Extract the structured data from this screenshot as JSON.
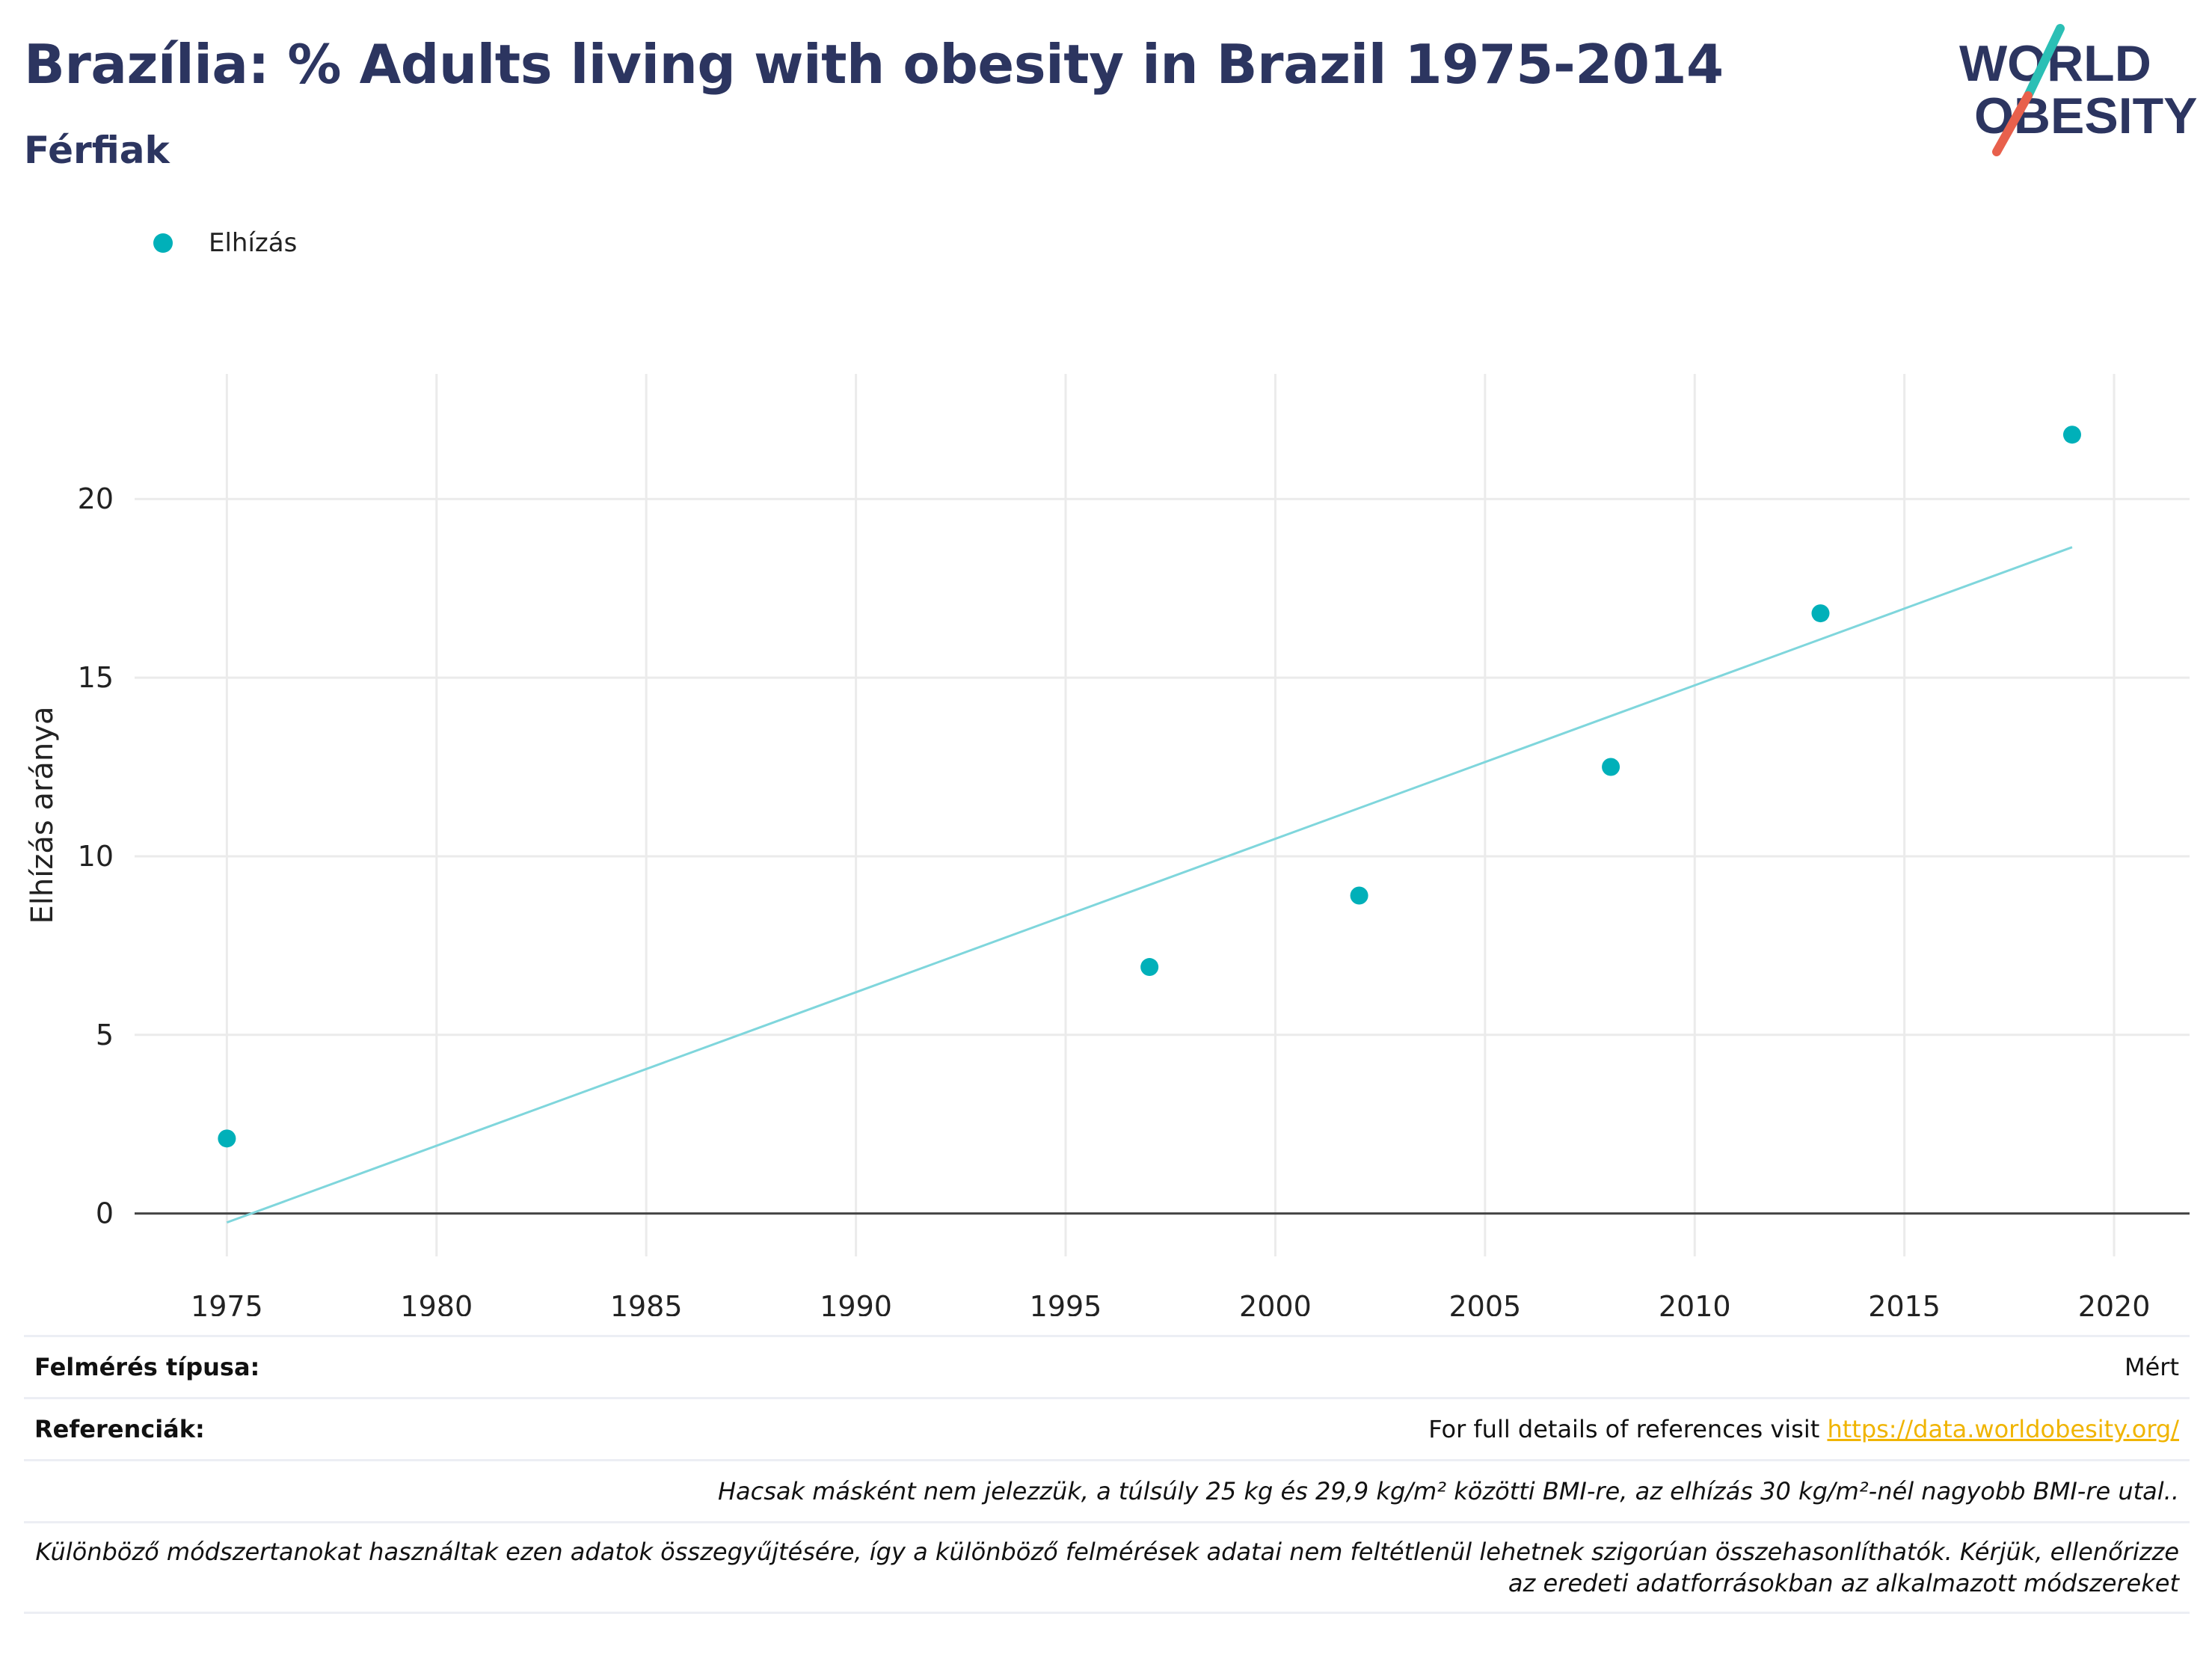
{
  "header": {
    "title": "Brazília: % Adults living with obesity in Brazil 1975-2014",
    "subtitle": "Férfiak"
  },
  "logo": {
    "line1": "WORLD",
    "line2": "OBESITY",
    "accent_teal": "#2bbfb5",
    "accent_red": "#e8604c",
    "text_color": "#2c3560"
  },
  "legend": {
    "label": "Elhízás",
    "color": "#00b0b9"
  },
  "chart_data": {
    "type": "scatter",
    "title": "",
    "xlabel": "",
    "ylabel": "Elhízás aránya",
    "xlim": [
      1972.8,
      2021.8
    ],
    "ylim": [
      -1.2,
      23.5
    ],
    "x_ticks": [
      1975,
      1980,
      1985,
      1990,
      1995,
      2000,
      2005,
      2010,
      2015,
      2020
    ],
    "y_ticks": [
      0,
      5,
      10,
      15,
      20
    ],
    "grid": true,
    "legend_position": "top-left",
    "series": [
      {
        "name": "Elhízás",
        "color": "#00b0b9",
        "x": [
          1975,
          1997,
          2002,
          2008,
          2013,
          2019
        ],
        "y": [
          2.1,
          6.9,
          8.9,
          12.5,
          16.8,
          21.8
        ]
      }
    ],
    "trendline": {
      "color": "#7fd6dc",
      "x": [
        1975,
        2019
      ],
      "y": [
        -0.25,
        18.65
      ]
    }
  },
  "footer": {
    "survey_type_label": "Felmérés típusa:",
    "survey_type_value": "Mért",
    "references_label": "Referenciák:",
    "references_text": "For full details of references visit ",
    "references_link": "https://data.worldobesity.org/",
    "note1": "Hacsak másként nem jelezzük, a túlsúly 25 kg és 29,9 kg/m² közötti BMI-re, az elhízás 30 kg/m²-nél nagyobb BMI-re utal..",
    "note2": "Különböző módszertanokat használtak ezen adatok összegyűjtésére, így a különböző felmérések adatai nem feltétlenül lehetnek szigorúan összehasonlíthatók. Kérjük, ellenőrizze az eredeti adatforrásokban az alkalmazott módszereket"
  }
}
